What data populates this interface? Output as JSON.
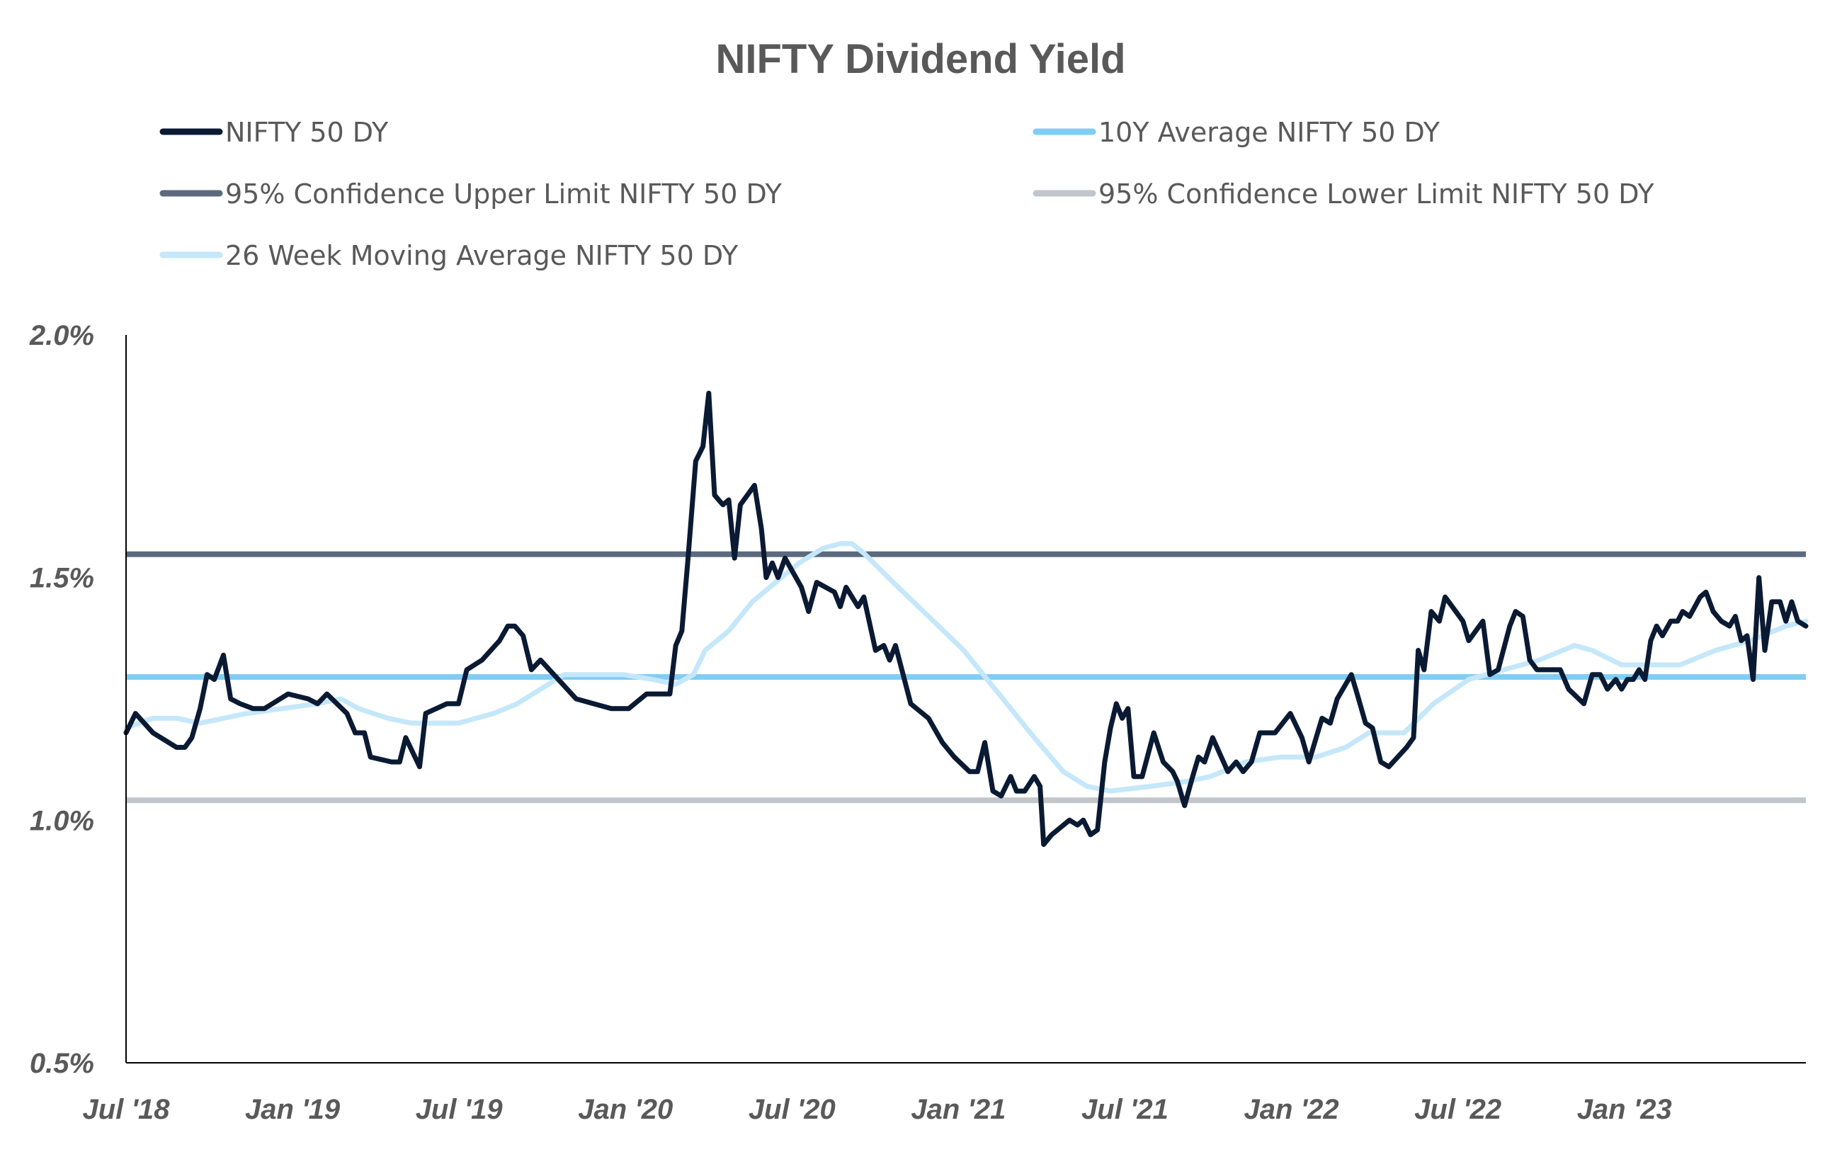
{
  "chart_data": {
    "type": "line",
    "title": "NIFTY Dividend Yield",
    "xlabel": "",
    "ylabel": "",
    "x_unit": "months since Jul 2018",
    "xlim": [
      0,
      60.6
    ],
    "ylim": [
      0.5,
      2.0
    ],
    "y_ticks": [
      0.5,
      1.0,
      1.5,
      2.0
    ],
    "y_tick_labels": [
      "0.5%",
      "1.0%",
      "1.5%",
      "2.0%"
    ],
    "x_ticks": [
      0,
      6,
      12,
      18,
      24,
      30,
      36,
      42,
      48,
      54
    ],
    "x_tick_labels": [
      "Jul '18",
      "Jan '19",
      "Jul '19",
      "Jan '20",
      "Jul '20",
      "Jan '21",
      "Jul '21",
      "Jan '22",
      "Jul '22",
      "Jan '23"
    ],
    "grid": false,
    "legend_placement": "top",
    "series": [
      {
        "name": "NIFTY 50 DY",
        "color": "#0b1a33",
        "kind": "line",
        "points": [
          [
            0,
            1.18
          ],
          [
            0.34,
            1.22
          ],
          [
            0.97,
            1.18
          ],
          [
            1.82,
            1.15
          ],
          [
            2.12,
            1.15
          ],
          [
            2.37,
            1.17
          ],
          [
            2.67,
            1.23
          ],
          [
            2.92,
            1.3
          ],
          [
            3.18,
            1.29
          ],
          [
            3.51,
            1.34
          ],
          [
            3.77,
            1.25
          ],
          [
            4.11,
            1.24
          ],
          [
            4.57,
            1.23
          ],
          [
            4.99,
            1.23
          ],
          [
            5.84,
            1.26
          ],
          [
            6.56,
            1.25
          ],
          [
            6.9,
            1.24
          ],
          [
            7.24,
            1.26
          ],
          [
            7.96,
            1.22
          ],
          [
            8.26,
            1.18
          ],
          [
            8.59,
            1.18
          ],
          [
            8.81,
            1.13
          ],
          [
            9.57,
            1.12
          ],
          [
            9.86,
            1.12
          ],
          [
            10.08,
            1.17
          ],
          [
            10.58,
            1.11
          ],
          [
            10.8,
            1.22
          ],
          [
            11.56,
            1.24
          ],
          [
            11.98,
            1.24
          ],
          [
            12.28,
            1.31
          ],
          [
            12.83,
            1.33
          ],
          [
            13.46,
            1.37
          ],
          [
            13.76,
            1.4
          ],
          [
            14.01,
            1.4
          ],
          [
            14.31,
            1.38
          ],
          [
            14.61,
            1.31
          ],
          [
            14.94,
            1.33
          ],
          [
            15.58,
            1.29
          ],
          [
            16.22,
            1.25
          ],
          [
            16.85,
            1.24
          ],
          [
            17.49,
            1.23
          ],
          [
            18.12,
            1.23
          ],
          [
            18.76,
            1.26
          ],
          [
            19.6,
            1.26
          ],
          [
            19.81,
            1.36
          ],
          [
            20.03,
            1.39
          ],
          [
            20.24,
            1.53
          ],
          [
            20.53,
            1.74
          ],
          [
            20.79,
            1.77
          ],
          [
            21.0,
            1.88
          ],
          [
            21.21,
            1.67
          ],
          [
            21.51,
            1.65
          ],
          [
            21.72,
            1.66
          ],
          [
            21.93,
            1.54
          ],
          [
            22.14,
            1.65
          ],
          [
            22.65,
            1.69
          ],
          [
            22.9,
            1.6
          ],
          [
            23.07,
            1.5
          ],
          [
            23.29,
            1.53
          ],
          [
            23.5,
            1.5
          ],
          [
            23.75,
            1.54
          ],
          [
            24.34,
            1.48
          ],
          [
            24.6,
            1.43
          ],
          [
            24.89,
            1.49
          ],
          [
            25.53,
            1.47
          ],
          [
            25.74,
            1.44
          ],
          [
            25.95,
            1.48
          ],
          [
            26.38,
            1.44
          ],
          [
            26.59,
            1.46
          ],
          [
            27.01,
            1.35
          ],
          [
            27.31,
            1.36
          ],
          [
            27.52,
            1.33
          ],
          [
            27.73,
            1.36
          ],
          [
            28.28,
            1.24
          ],
          [
            28.92,
            1.21
          ],
          [
            29.42,
            1.16
          ],
          [
            29.85,
            1.13
          ],
          [
            30.4,
            1.1
          ],
          [
            30.69,
            1.1
          ],
          [
            30.95,
            1.16
          ],
          [
            31.24,
            1.06
          ],
          [
            31.54,
            1.05
          ],
          [
            31.88,
            1.09
          ],
          [
            32.09,
            1.06
          ],
          [
            32.39,
            1.06
          ],
          [
            32.73,
            1.09
          ],
          [
            32.94,
            1.07
          ],
          [
            33.07,
            0.95
          ],
          [
            33.36,
            0.97
          ],
          [
            34.0,
            1.0
          ],
          [
            34.29,
            0.99
          ],
          [
            34.5,
            1.0
          ],
          [
            34.76,
            0.97
          ],
          [
            35.01,
            0.98
          ],
          [
            35.27,
            1.12
          ],
          [
            35.48,
            1.19
          ],
          [
            35.69,
            1.24
          ],
          [
            35.9,
            1.21
          ],
          [
            36.11,
            1.23
          ],
          [
            36.32,
            1.09
          ],
          [
            36.62,
            1.09
          ],
          [
            37.04,
            1.18
          ],
          [
            37.38,
            1.12
          ],
          [
            37.72,
            1.1
          ],
          [
            37.89,
            1.08
          ],
          [
            38.15,
            1.03
          ],
          [
            38.44,
            1.09
          ],
          [
            38.65,
            1.13
          ],
          [
            38.87,
            1.12
          ],
          [
            39.16,
            1.17
          ],
          [
            39.71,
            1.1
          ],
          [
            40.01,
            1.12
          ],
          [
            40.26,
            1.1
          ],
          [
            40.56,
            1.12
          ],
          [
            40.86,
            1.18
          ],
          [
            41.41,
            1.18
          ],
          [
            41.96,
            1.22
          ],
          [
            42.38,
            1.17
          ],
          [
            42.63,
            1.12
          ],
          [
            43.1,
            1.21
          ],
          [
            43.4,
            1.2
          ],
          [
            43.65,
            1.25
          ],
          [
            44.16,
            1.3
          ],
          [
            44.37,
            1.26
          ],
          [
            44.67,
            1.2
          ],
          [
            44.92,
            1.19
          ],
          [
            45.22,
            1.12
          ],
          [
            45.51,
            1.11
          ],
          [
            46.15,
            1.15
          ],
          [
            46.4,
            1.17
          ],
          [
            46.57,
            1.35
          ],
          [
            46.78,
            1.31
          ],
          [
            47.04,
            1.43
          ],
          [
            47.33,
            1.41
          ],
          [
            47.54,
            1.46
          ],
          [
            48.18,
            1.41
          ],
          [
            48.39,
            1.37
          ],
          [
            48.9,
            1.41
          ],
          [
            49.15,
            1.3
          ],
          [
            49.45,
            1.31
          ],
          [
            49.87,
            1.4
          ],
          [
            50.08,
            1.43
          ],
          [
            50.34,
            1.42
          ],
          [
            50.59,
            1.33
          ],
          [
            50.85,
            1.31
          ],
          [
            51.44,
            1.31
          ],
          [
            51.69,
            1.31
          ],
          [
            51.99,
            1.27
          ],
          [
            52.54,
            1.24
          ],
          [
            52.84,
            1.3
          ],
          [
            53.13,
            1.3
          ],
          [
            53.39,
            1.27
          ],
          [
            53.69,
            1.29
          ],
          [
            53.9,
            1.27
          ],
          [
            54.11,
            1.29
          ],
          [
            54.32,
            1.29
          ],
          [
            54.53,
            1.31
          ],
          [
            54.74,
            1.29
          ],
          [
            54.95,
            1.37
          ],
          [
            55.16,
            1.4
          ],
          [
            55.37,
            1.38
          ],
          [
            55.67,
            1.41
          ],
          [
            55.92,
            1.41
          ],
          [
            56.1,
            1.43
          ],
          [
            56.35,
            1.42
          ],
          [
            56.73,
            1.46
          ],
          [
            56.94,
            1.47
          ],
          [
            57.2,
            1.43
          ],
          [
            57.49,
            1.41
          ],
          [
            57.79,
            1.4
          ],
          [
            58.0,
            1.42
          ],
          [
            58.21,
            1.37
          ],
          [
            58.42,
            1.38
          ],
          [
            58.64,
            1.29
          ],
          [
            58.85,
            1.5
          ],
          [
            59.06,
            1.35
          ],
          [
            59.31,
            1.45
          ],
          [
            59.61,
            1.45
          ],
          [
            59.82,
            1.41
          ],
          [
            60.03,
            1.45
          ],
          [
            60.25,
            1.41
          ],
          [
            60.54,
            1.4
          ]
        ]
      },
      {
        "name": "10Y Average NIFTY 50 DY",
        "color": "#7fcdf5",
        "kind": "hline",
        "value": 1.295
      },
      {
        "name": "95% Confidence Upper Limit NIFTY 50 DY",
        "color": "#5b6a7e",
        "kind": "hline",
        "value": 1.548
      },
      {
        "name": "95% Confidence Lower Limit NIFTY 50 DY",
        "color": "#c2c6cb",
        "kind": "hline",
        "value": 1.041
      },
      {
        "name": "26 Week Moving Average NIFTY 50 DY",
        "color": "#c5e7fa",
        "kind": "line",
        "points": [
          [
            0,
            1.19
          ],
          [
            0.97,
            1.21
          ],
          [
            1.82,
            1.21
          ],
          [
            2.67,
            1.2
          ],
          [
            3.51,
            1.21
          ],
          [
            4.36,
            1.22
          ],
          [
            5.63,
            1.23
          ],
          [
            6.9,
            1.24
          ],
          [
            7.75,
            1.25
          ],
          [
            8.38,
            1.23
          ],
          [
            9.44,
            1.21
          ],
          [
            10.29,
            1.2
          ],
          [
            11.98,
            1.2
          ],
          [
            13.25,
            1.22
          ],
          [
            14.1,
            1.24
          ],
          [
            14.94,
            1.27
          ],
          [
            15.79,
            1.3
          ],
          [
            16.64,
            1.3
          ],
          [
            17.91,
            1.3
          ],
          [
            18.97,
            1.29
          ],
          [
            19.81,
            1.28
          ],
          [
            20.45,
            1.3
          ],
          [
            20.87,
            1.35
          ],
          [
            21.72,
            1.39
          ],
          [
            22.57,
            1.45
          ],
          [
            23.41,
            1.49
          ],
          [
            24.26,
            1.53
          ],
          [
            25.11,
            1.56
          ],
          [
            25.74,
            1.57
          ],
          [
            26.16,
            1.57
          ],
          [
            26.59,
            1.55
          ],
          [
            27.65,
            1.49
          ],
          [
            28.92,
            1.42
          ],
          [
            30.19,
            1.35
          ],
          [
            31.46,
            1.26
          ],
          [
            32.73,
            1.17
          ],
          [
            33.78,
            1.1
          ],
          [
            34.63,
            1.07
          ],
          [
            35.48,
            1.06
          ],
          [
            36.96,
            1.07
          ],
          [
            38.23,
            1.08
          ],
          [
            39.08,
            1.09
          ],
          [
            40.35,
            1.12
          ],
          [
            41.62,
            1.13
          ],
          [
            42.89,
            1.13
          ],
          [
            43.95,
            1.15
          ],
          [
            44.79,
            1.18
          ],
          [
            46.06,
            1.18
          ],
          [
            47.12,
            1.24
          ],
          [
            48.39,
            1.29
          ],
          [
            49.66,
            1.31
          ],
          [
            50.93,
            1.33
          ],
          [
            52.2,
            1.36
          ],
          [
            52.84,
            1.35
          ],
          [
            53.9,
            1.32
          ],
          [
            54.74,
            1.32
          ],
          [
            56.01,
            1.32
          ],
          [
            57.28,
            1.35
          ],
          [
            58.55,
            1.37
          ],
          [
            59.82,
            1.4
          ],
          [
            60.54,
            1.41
          ]
        ]
      }
    ]
  }
}
